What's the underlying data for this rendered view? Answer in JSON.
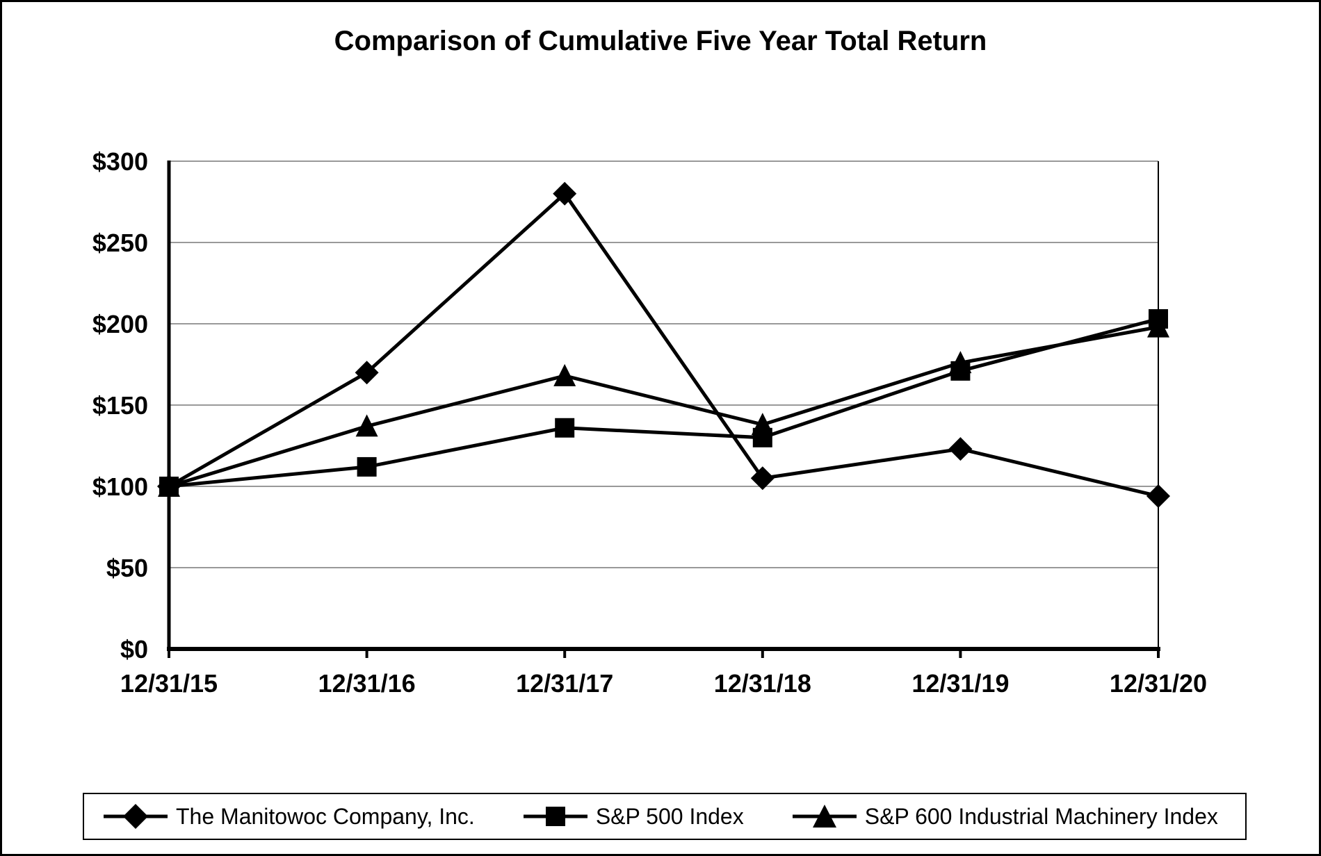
{
  "page": {
    "background_color": "#ffffff",
    "border_color": "#000000"
  },
  "chart_data": {
    "type": "line",
    "title": "Comparison of Cumulative Five Year Total Return",
    "categories": [
      "12/31/15",
      "12/31/16",
      "12/31/17",
      "12/31/18",
      "12/31/19",
      "12/31/20"
    ],
    "series": [
      {
        "name": "The Manitowoc Company, Inc.",
        "marker": "diamond",
        "color": "#000000",
        "values": [
          100,
          170,
          280,
          105,
          123,
          94
        ]
      },
      {
        "name": "S&P 500 Index",
        "marker": "square",
        "color": "#000000",
        "values": [
          100,
          112,
          136,
          130,
          171,
          203
        ]
      },
      {
        "name": "S&P 600 Industrial Machinery Index",
        "marker": "triangle",
        "color": "#000000",
        "values": [
          100,
          137,
          168,
          138,
          176,
          198
        ]
      }
    ],
    "xlabel": "",
    "ylabel": "",
    "y_axis": {
      "min": 0,
      "max": 300,
      "step": 50,
      "tick_labels": [
        "$0",
        "$50",
        "$100",
        "$150",
        "$200",
        "$250",
        "$300"
      ]
    },
    "grid": true,
    "gridline_color": "#999999",
    "axis_color": "#000000",
    "legend_position": "bottom"
  }
}
